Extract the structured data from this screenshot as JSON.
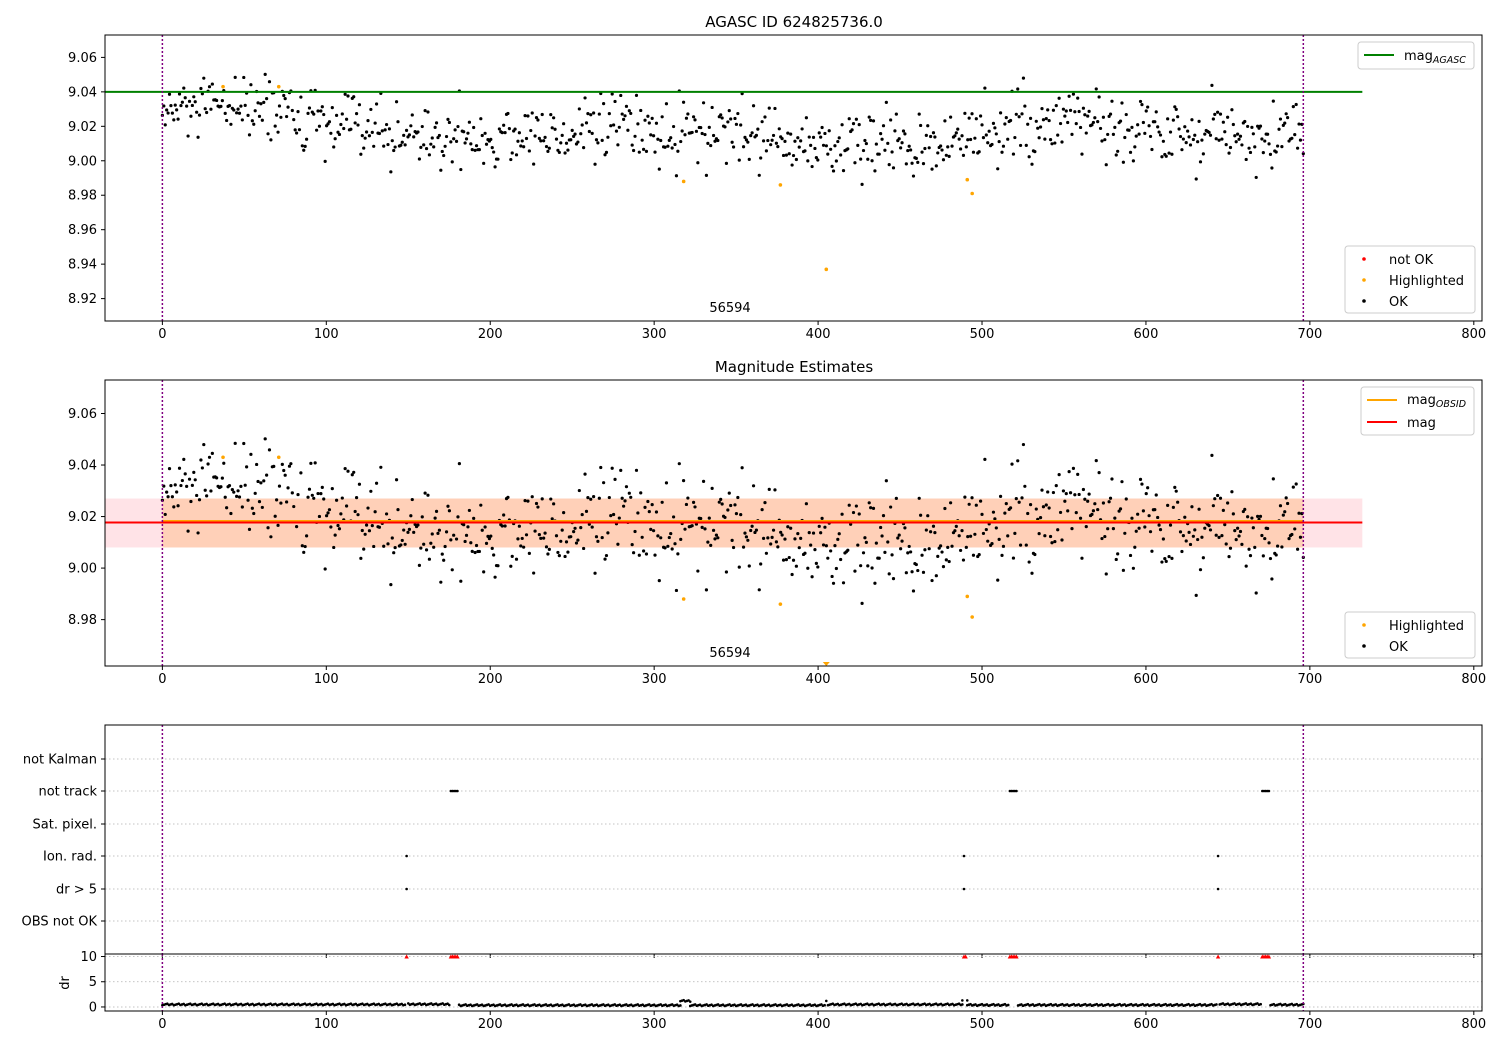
{
  "chart_data": [
    {
      "type": "scatter",
      "title": "AGASC ID 624825736.0",
      "annotation": "56594",
      "xlim": [
        -35,
        805
      ],
      "ylim": [
        8.907,
        9.073
      ],
      "xticks": [
        0,
        100,
        200,
        300,
        400,
        500,
        600,
        700,
        800
      ],
      "yticks": [
        8.92,
        8.94,
        8.96,
        8.98,
        9.0,
        9.02,
        9.04,
        9.06
      ],
      "ytick_labels": [
        "8.92",
        "8.94",
        "8.96",
        "8.98",
        "9.00",
        "9.02",
        "9.04",
        "9.06"
      ],
      "vlines": [
        0,
        696
      ],
      "hlines": [
        {
          "name_main": "mag",
          "name_sub": "AGASC",
          "y": 9.04,
          "x_end": 732,
          "color": "#008000"
        }
      ],
      "legend_lines": [
        {
          "name_main": "mag",
          "name_sub": "AGASC",
          "color": "#008000"
        }
      ],
      "legend_points": [
        {
          "name": "not OK",
          "color": "#ff0000"
        },
        {
          "name": "Highlighted",
          "color": "#ffa500"
        },
        {
          "name": "OK",
          "color": "#000000"
        }
      ],
      "highlighted": [
        [
          37,
          9.043
        ],
        [
          71,
          9.043
        ],
        [
          318,
          8.988
        ],
        [
          377,
          8.986
        ],
        [
          405,
          8.937
        ],
        [
          491,
          8.989
        ],
        [
          494,
          8.981
        ]
      ],
      "ok_seed": 12345,
      "ok_x_range": [
        0,
        696
      ],
      "ok_count": 800,
      "ok_baseline": 9.017,
      "ok_spread": 0.0095
    },
    {
      "type": "scatter",
      "title": "Magnitude Estimates",
      "annotation": "56594",
      "xlim": [
        -35,
        805
      ],
      "ylim": [
        8.962,
        9.073
      ],
      "xticks": [
        0,
        100,
        200,
        300,
        400,
        500,
        600,
        700,
        800
      ],
      "yticks": [
        8.98,
        9.0,
        9.02,
        9.04,
        9.06
      ],
      "ytick_labels": [
        "8.98",
        "9.00",
        "9.02",
        "9.04",
        "9.06"
      ],
      "vlines": [
        0,
        696
      ],
      "bands": [
        {
          "y0": 9.008,
          "y1": 9.027,
          "x0": -35,
          "x1": 732,
          "color": "#ff9aa8",
          "opacity": 0.28
        },
        {
          "y0": 9.008,
          "y1": 9.027,
          "x0": 0,
          "x1": 696,
          "color": "#ffa64d",
          "opacity": 0.3
        }
      ],
      "hlines": [
        {
          "name_main": "mag",
          "name_sub": "OBSID",
          "y": 9.0183,
          "x_start": 0,
          "x_end": 696,
          "color": "#ffa500"
        },
        {
          "name_main": "mag",
          "name_sub": "",
          "y": 9.0177,
          "x_start": -35,
          "x_end": 732,
          "color": "#ff0000"
        }
      ],
      "legend_lines": [
        {
          "name_main": "mag",
          "name_sub": "OBSID",
          "color": "#ffa500"
        },
        {
          "name_main": "mag",
          "name_sub": "",
          "color": "#ff0000"
        }
      ],
      "legend_points": [
        {
          "name": "Highlighted",
          "color": "#ffa500"
        },
        {
          "name": "OK",
          "color": "#000000"
        }
      ],
      "highlighted": [
        [
          37,
          9.043
        ],
        [
          71,
          9.043
        ],
        [
          318,
          8.988
        ],
        [
          377,
          8.986
        ],
        [
          491,
          8.989
        ],
        [
          494,
          8.981
        ]
      ],
      "out_of_range_marker": [
        405,
        8.962
      ],
      "ok_seed": 12345,
      "ok_x_range": [
        0,
        696
      ],
      "ok_count": 800,
      "ok_baseline": 9.017,
      "ok_spread": 0.0095
    },
    {
      "type": "scatter",
      "title": "",
      "xlim": [
        -35,
        805
      ],
      "xticks": [
        0,
        100,
        200,
        300,
        400,
        500,
        600,
        700,
        800
      ],
      "vlines": [
        0,
        696
      ],
      "categories": [
        "not Kalman",
        "not track",
        "Sat. pixel.",
        "Ion. rad.",
        "dr > 5",
        "OBS not OK"
      ],
      "flags": [
        {
          "category": "not track",
          "x": [
            176,
            177,
            178,
            179,
            180,
            517,
            518,
            519,
            520,
            521,
            671,
            672,
            673,
            674,
            675
          ]
        },
        {
          "category": "Ion. rad.",
          "x": [
            149,
            489,
            644
          ]
        },
        {
          "category": "dr > 5",
          "x": [
            149,
            489,
            644
          ]
        }
      ]
    },
    {
      "type": "scatter",
      "title": "",
      "ylabel": "dr",
      "xlim": [
        -35,
        805
      ],
      "ylim": [
        -0.8,
        10.5
      ],
      "yticks": [
        0,
        5,
        10
      ],
      "ytick_labels": [
        "0",
        "5",
        "10"
      ],
      "xticks": [
        0,
        100,
        200,
        300,
        400,
        500,
        600,
        700,
        800
      ],
      "xtick_labels": [
        "0",
        "100",
        "200",
        "300",
        "400",
        "500",
        "600",
        "700",
        "800"
      ],
      "vlines": [
        0,
        696
      ],
      "capped_value": 10,
      "capped_x": [
        149,
        176,
        177,
        178,
        179,
        180,
        489,
        490,
        517,
        518,
        519,
        520,
        521,
        644,
        671,
        672,
        673,
        674,
        675
      ],
      "dr_segments": [
        {
          "x0": 0,
          "x1": 148,
          "y": 0.5
        },
        {
          "x0": 150,
          "x1": 175,
          "y": 0.55
        },
        {
          "x0": 181,
          "x1": 316,
          "y": 0.35
        },
        {
          "x0": 316,
          "x1": 322,
          "y": 1.2
        },
        {
          "x0": 322,
          "x1": 404,
          "y": 0.35
        },
        {
          "x0": 406,
          "x1": 488,
          "y": 0.5
        },
        {
          "x0": 491,
          "x1": 516,
          "y": 0.4
        },
        {
          "x0": 522,
          "x1": 643,
          "y": 0.4
        },
        {
          "x0": 645,
          "x1": 670,
          "y": 0.55
        },
        {
          "x0": 676,
          "x1": 696,
          "y": 0.45
        }
      ],
      "dr_extra": [
        [
          405,
          1.2
        ],
        [
          488,
          1.3
        ],
        [
          491,
          1.3
        ]
      ]
    }
  ]
}
